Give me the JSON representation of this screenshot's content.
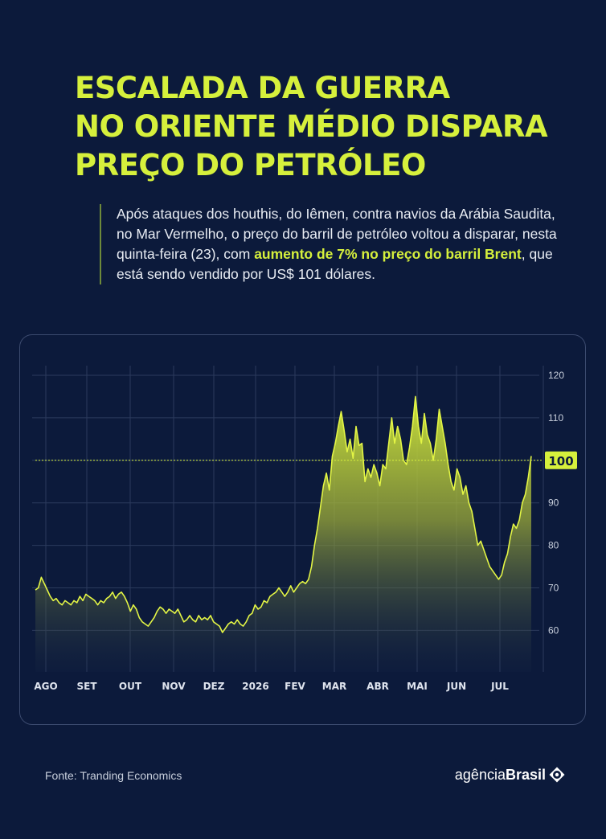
{
  "header": {
    "title_lines": [
      "ESCALADA DA GUERRA",
      "NO ORIENTE MÉDIO DISPARA",
      "PREÇO DO PETRÓLEO"
    ]
  },
  "lead": {
    "text_before": "Após ataques dos houthis, do Iêmen, contra navios da Arábia Saudita, no Mar Vermelho, o preço do barril de petróleo voltou a disparar, nesta quinta-feira (23), com ",
    "highlight": "aumento de 7% no preço do barril Brent",
    "text_after": ", que está sendo vendido por US$ 101 dólares."
  },
  "footer": {
    "source": "Fonte: Tranding Economics",
    "logo_part1": "agência",
    "logo_part2": "Brasil",
    "logo_icon": "agencia-brasil-logo-icon"
  },
  "colors": {
    "background": "#0c1a3b",
    "accent": "#d6f03c",
    "line": "#e3f545",
    "grid": "#2b3a5c"
  },
  "chart_data": {
    "type": "area",
    "title": "",
    "xlabel": "",
    "ylabel": "",
    "ylim": [
      50,
      122
    ],
    "yticks": [
      60,
      70,
      80,
      90,
      100,
      110,
      120
    ],
    "x_labels": [
      "AGO",
      "SET",
      "OUT",
      "NOV",
      "DEZ",
      "2026",
      "FEV",
      "MAR",
      "ABR",
      "MAI",
      "JUN",
      "JUL"
    ],
    "grid": true,
    "reference_line": {
      "value": 100,
      "label": "100"
    },
    "series": [
      {
        "values": [
          69.5,
          70,
          72.5,
          71,
          69.5,
          68,
          67,
          67.5,
          66.5,
          66,
          67,
          66.5,
          66,
          67,
          66.5,
          68,
          67,
          68.5,
          68,
          67.5,
          67,
          66,
          67,
          66.5,
          67.5,
          68,
          69,
          67.5,
          68.5,
          69,
          68,
          66.5,
          64.5,
          66,
          65,
          63,
          62,
          61.5,
          61,
          62,
          63,
          64.5,
          65.5,
          65,
          64,
          65,
          64.5,
          64,
          65,
          63.5,
          62,
          62.5,
          63.5,
          62.5,
          62,
          63.5,
          62.5,
          63,
          62.5,
          63.5,
          62,
          61.5,
          61,
          59.5,
          60.5,
          61.5,
          62,
          61.5,
          62.5,
          61.5,
          61,
          62,
          63.5,
          64,
          66,
          65,
          65.5,
          67,
          66.5,
          68,
          68.5,
          69,
          70,
          69,
          68,
          69,
          70.5,
          69,
          70,
          71,
          71.5,
          71,
          72,
          75,
          80,
          84,
          89,
          94,
          97,
          93,
          101,
          104,
          108,
          111.5,
          107,
          102,
          105,
          100.5,
          108,
          103.5,
          104,
          95,
          98,
          96,
          99,
          97,
          94,
          99,
          98,
          104,
          110,
          104,
          108,
          105,
          100,
          99,
          103,
          108,
          115,
          108,
          104,
          111,
          106,
          104,
          100,
          105,
          112,
          108,
          104,
          99,
          95,
          93,
          98,
          96,
          92,
          94,
          90,
          88,
          84,
          80,
          81,
          79,
          77,
          75,
          74,
          73,
          72,
          73,
          76,
          78,
          82,
          85,
          84,
          86,
          90,
          92,
          96,
          101
        ]
      }
    ]
  }
}
